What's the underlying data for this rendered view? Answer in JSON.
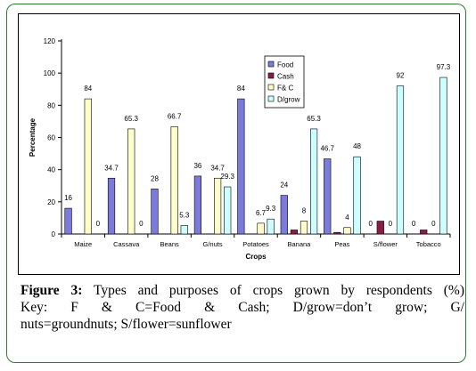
{
  "chart_data": {
    "type": "bar",
    "title": "",
    "xlabel": "Crops",
    "ylabel": "Percentage",
    "ylim": [
      0,
      120
    ],
    "yticks": [
      "0",
      "20",
      "40",
      "60",
      "80",
      "100",
      "120"
    ],
    "grid": false,
    "legend_position": "top-center",
    "categories": [
      "Maize",
      "Cassava",
      "Beans",
      "G/nuts",
      "Potatoes",
      "Banana",
      "Peas",
      "S/flower",
      "Tobacco"
    ],
    "series": [
      {
        "name": "Food",
        "color": "#7b7bdc",
        "values": [
          16,
          34.7,
          28,
          36,
          84,
          24,
          46.7,
          0,
          0
        ],
        "labels": [
          "16",
          "34.7",
          "28",
          "36",
          "84",
          "24",
          "46.7",
          "0",
          "0"
        ]
      },
      {
        "name": "Cash",
        "color": "#8b1c4a",
        "values": [
          0,
          0,
          0,
          0,
          0,
          2.5,
          1,
          8,
          2.5
        ],
        "labels": [
          "",
          "",
          "",
          "",
          "",
          "",
          "",
          "",
          ""
        ]
      },
      {
        "name": "F& C",
        "color": "#ffffcc",
        "values": [
          84,
          65.3,
          66.7,
          34.7,
          6.7,
          8,
          4,
          0,
          0
        ],
        "labels": [
          "84",
          "65.3",
          "66.7",
          "34.7",
          "6.7",
          "8",
          "4",
          "0",
          "0"
        ]
      },
      {
        "name": "D/grow",
        "color": "#ccffff",
        "values": [
          0,
          0,
          5.3,
          29.3,
          9.3,
          65.3,
          48,
          92,
          97.3
        ],
        "labels": [
          "0",
          "0",
          "5.3",
          "29.3",
          "9.3",
          "65.3",
          "48",
          "92",
          "97.3"
        ]
      }
    ]
  },
  "caption": {
    "figure_label": "Figure 3:",
    "line1_rest": "Types and purposes of crops grown by respondents (%)",
    "line2": "Key: F & C=Food & Cash; D/grow=don’t grow; G/",
    "line3": "nuts=groundnuts; S/flower=sunflower"
  }
}
